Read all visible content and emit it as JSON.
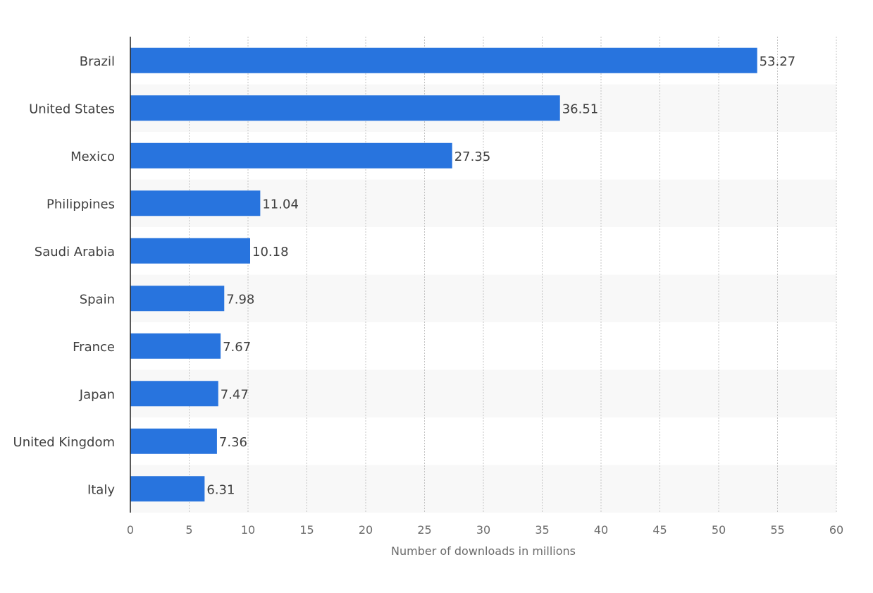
{
  "chart_data": {
    "type": "bar",
    "orientation": "horizontal",
    "categories": [
      "Brazil",
      "United States",
      "Mexico",
      "Philippines",
      "Saudi Arabia",
      "Spain",
      "France",
      "Japan",
      "United Kingdom",
      "Italy"
    ],
    "values": [
      53.27,
      36.51,
      27.35,
      11.04,
      10.18,
      7.98,
      7.67,
      7.47,
      7.36,
      6.31
    ],
    "value_labels": [
      "53.27",
      "36.51",
      "27.35",
      "11.04",
      "10.18",
      "7.98",
      "7.67",
      "7.47",
      "7.36",
      "6.31"
    ],
    "x_ticks": [
      "0",
      "5",
      "10",
      "15",
      "20",
      "25",
      "30",
      "35",
      "40",
      "45",
      "50",
      "55",
      "60"
    ],
    "xlim": [
      0,
      60
    ],
    "xlabel": "Number of downloads in millions",
    "ylabel": "",
    "title": "",
    "grid": true,
    "bar_color": "#2874de",
    "band_color": "#f8f8f8"
  }
}
